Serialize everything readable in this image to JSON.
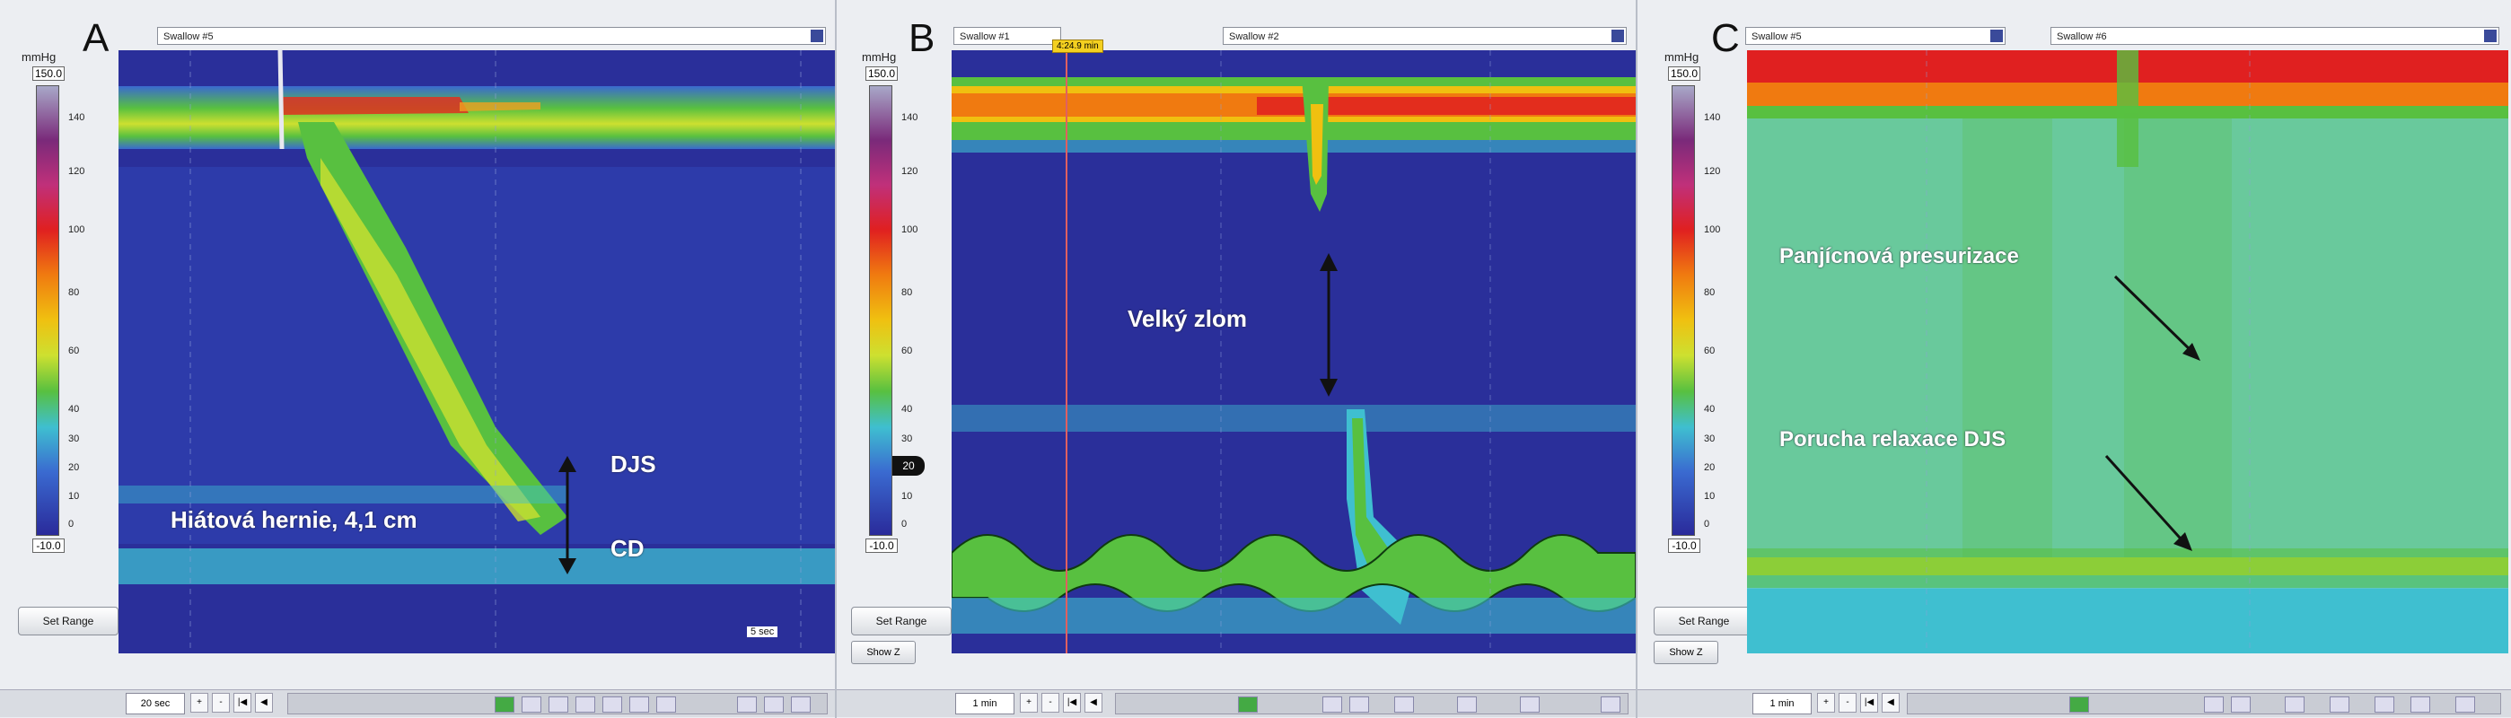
{
  "panels": [
    {
      "letter": "A",
      "unit": "mmHg",
      "scale_top": "150.0",
      "scale_bottom": "-10.0",
      "ticks": [
        "140",
        "120",
        "100",
        "80",
        "60",
        "40",
        "30",
        "20",
        "10",
        "0"
      ],
      "set_range": "Set Range",
      "swallow_label": "Swallow #5",
      "time_button": "20 sec",
      "time_scale": "5 sec",
      "annotations": {
        "djs": "DJS",
        "cd": "CD",
        "hernia": "Hiátová hernie, 4,1 cm"
      }
    },
    {
      "letter": "B",
      "unit": "mmHg",
      "scale_top": "150.0",
      "scale_bottom": "-10.0",
      "ticks": [
        "140",
        "120",
        "100",
        "80",
        "60",
        "40",
        "30",
        "20",
        "10",
        "0"
      ],
      "marker_value": "20",
      "set_range": "Set Range",
      "show_button": "Show Z",
      "swallow_label_left": "Swallow #1",
      "swallow_label_right": "Swallow #2",
      "time_tag": "4:24.9 min",
      "time_button": "1 min",
      "annotations": {
        "break": "Velký zlom"
      }
    },
    {
      "letter": "C",
      "unit": "mmHg",
      "scale_top": "150.0",
      "scale_bottom": "-10.0",
      "ticks": [
        "140",
        "120",
        "100",
        "80",
        "60",
        "40",
        "30",
        "20",
        "10",
        "0"
      ],
      "set_range": "Set Range",
      "show_button": "Show Z",
      "swallow_label_left": "Swallow #5",
      "swallow_label_right": "Swallow #6",
      "time_button": "1 min",
      "annotations": {
        "pressurization": "Panjícnová presurizace",
        "relaxation": "Porucha relaxace DJS"
      }
    }
  ],
  "colors": {
    "background_deep": "#2a2f9a",
    "background_mid": "#3a6ad0",
    "cyan_band": "#3fbfd0",
    "green_band": "#58c040",
    "high_pressure": "#e02020",
    "annotation_text": "#ffffff"
  }
}
